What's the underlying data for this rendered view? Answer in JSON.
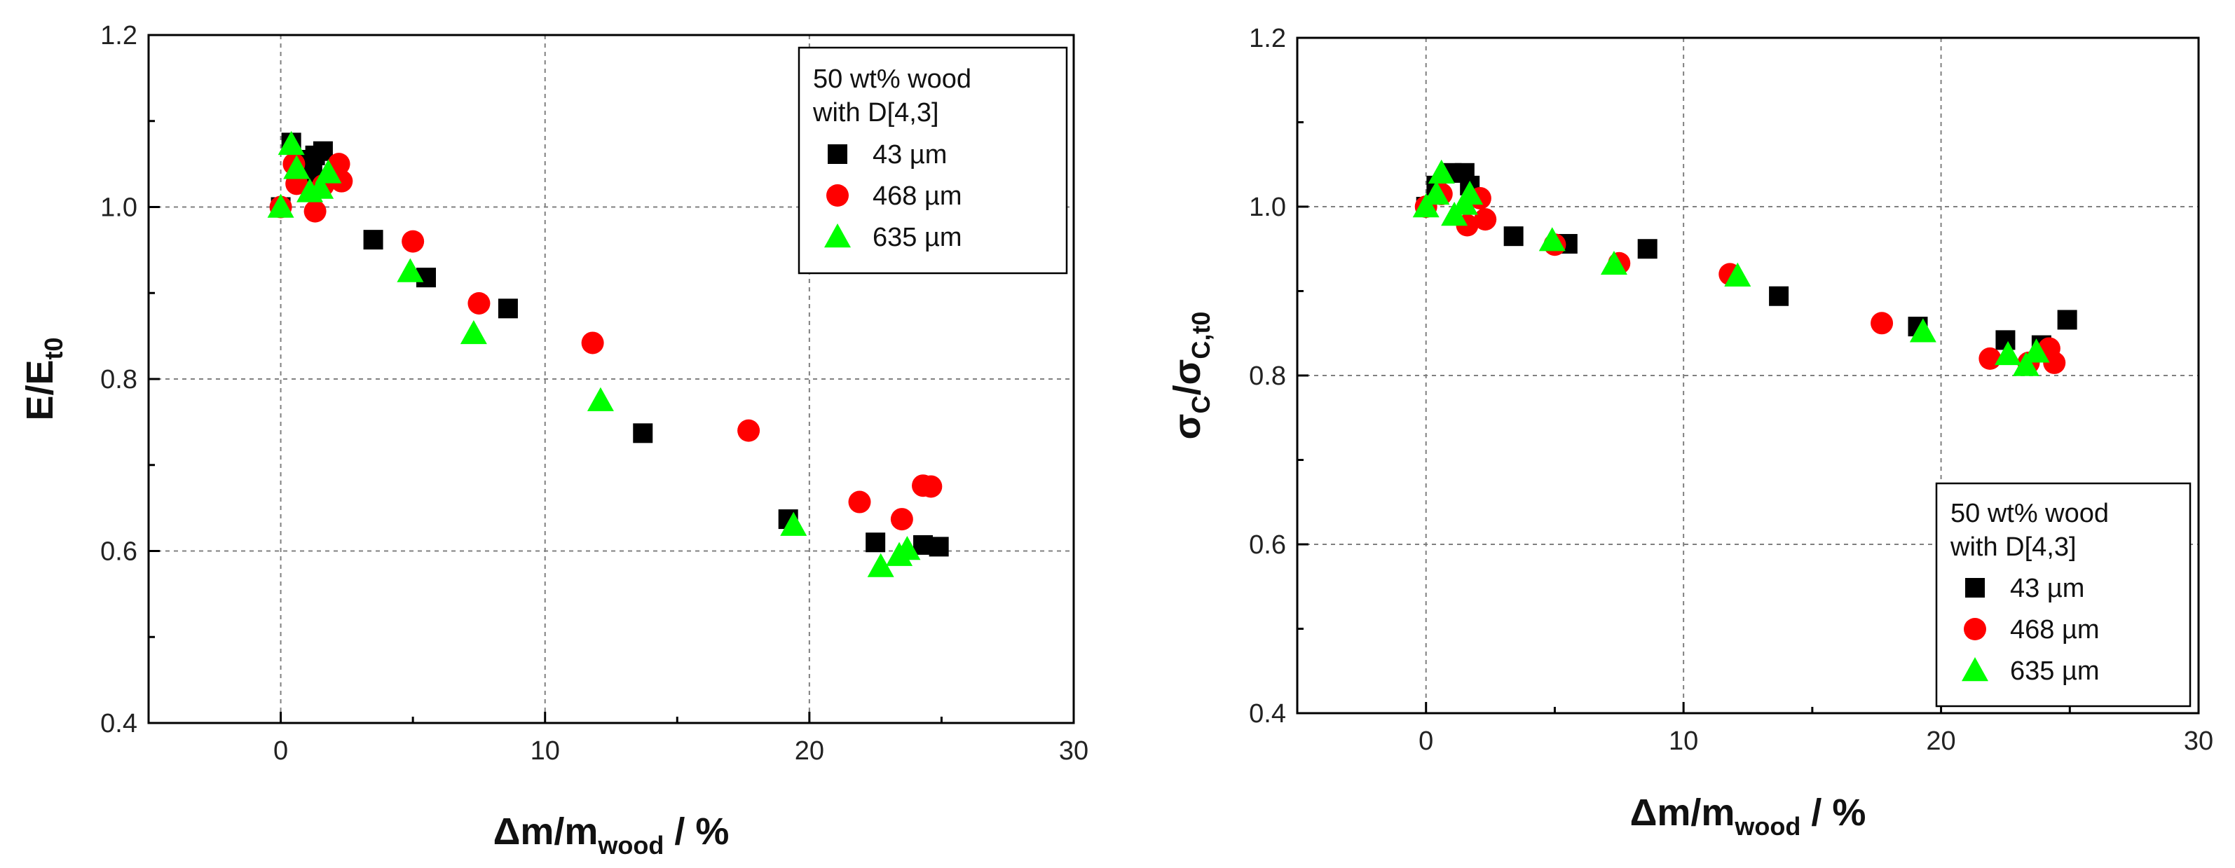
{
  "chart_data": [
    {
      "type": "scatter",
      "xlabel_main": "Δm/m",
      "xlabel_sub": "wood",
      "xlabel_tail": " / %",
      "ylabel_main": "E/E",
      "ylabel_sub": "t0",
      "xlim": [
        -5,
        30
      ],
      "ylim": [
        0.4,
        1.2
      ],
      "xticks": [
        0,
        10,
        20,
        30
      ],
      "yticks": [
        0.4,
        0.6,
        0.8,
        1.0,
        1.2
      ],
      "xtick_labels": [
        "0",
        "10",
        "20",
        "30"
      ],
      "ytick_labels": [
        "0.4",
        "0.6",
        "0.8",
        "1.0",
        "1.2"
      ],
      "legend_title": [
        "50 wt% wood",
        "with D[4,3]"
      ],
      "legend_position": "top-right",
      "series": [
        {
          "name": "43 µm",
          "marker": "square",
          "color": "#000000",
          "points": [
            [
              0,
              1.0
            ],
            [
              0.4,
              1.075
            ],
            [
              1.0,
              1.055
            ],
            [
              1.3,
              1.06
            ],
            [
              1.6,
              1.065
            ],
            [
              1.2,
              1.04
            ],
            [
              3.5,
              0.962
            ],
            [
              5.5,
              0.918
            ],
            [
              8.6,
              0.882
            ],
            [
              13.7,
              0.737
            ],
            [
              19.2,
              0.637
            ],
            [
              22.5,
              0.61
            ],
            [
              24.3,
              0.607
            ],
            [
              24.9,
              0.605
            ]
          ]
        },
        {
          "name": "468 µm",
          "marker": "circle",
          "color": "#ff0000",
          "points": [
            [
              0,
              1.0
            ],
            [
              0.5,
              1.05
            ],
            [
              0.6,
              1.027
            ],
            [
              1.3,
              0.995
            ],
            [
              1.6,
              1.025
            ],
            [
              2.2,
              1.05
            ],
            [
              2.3,
              1.03
            ],
            [
              5.0,
              0.96
            ],
            [
              7.5,
              0.888
            ],
            [
              11.8,
              0.842
            ],
            [
              17.7,
              0.74
            ],
            [
              21.9,
              0.657
            ],
            [
              23.5,
              0.637
            ],
            [
              24.3,
              0.676
            ],
            [
              24.6,
              0.675
            ]
          ]
        },
        {
          "name": "635 µm",
          "marker": "triangle",
          "color": "#00ff00",
          "points": [
            [
              0,
              1.0
            ],
            [
              0.4,
              1.073
            ],
            [
              0.6,
              1.045
            ],
            [
              1.1,
              1.018
            ],
            [
              1.5,
              1.022
            ],
            [
              1.8,
              1.04
            ],
            [
              4.9,
              0.925
            ],
            [
              7.3,
              0.853
            ],
            [
              12.1,
              0.775
            ],
            [
              19.4,
              0.63
            ],
            [
              22.7,
              0.582
            ],
            [
              23.4,
              0.595
            ],
            [
              23.7,
              0.602
            ]
          ]
        }
      ]
    },
    {
      "type": "scatter",
      "xlabel_main": "Δm/m",
      "xlabel_sub": "wood",
      "xlabel_tail": " / %",
      "ylabel_main": "σ",
      "ylabel_sub1": "C",
      "ylabel_mid": "/σ",
      "ylabel_sub2": "C,t0",
      "xlim": [
        -5,
        30
      ],
      "ylim": [
        0.4,
        1.2
      ],
      "xticks": [
        0,
        10,
        20,
        30
      ],
      "yticks": [
        0.4,
        0.6,
        0.8,
        1.0,
        1.2
      ],
      "xtick_labels": [
        "0",
        "10",
        "20",
        "30"
      ],
      "ytick_labels": [
        "0.4",
        "0.6",
        "0.8",
        "1.0",
        "1.2"
      ],
      "legend_title": [
        "50 wt% wood",
        "with D[4,3]"
      ],
      "legend_position": "bottom-right",
      "series": [
        {
          "name": "43 µm",
          "marker": "square",
          "color": "#000000",
          "points": [
            [
              0,
              1.0
            ],
            [
              0.4,
              1.025
            ],
            [
              1.0,
              1.04
            ],
            [
              1.5,
              1.04
            ],
            [
              1.7,
              1.025
            ],
            [
              3.4,
              0.965
            ],
            [
              5.5,
              0.956
            ],
            [
              8.6,
              0.95
            ],
            [
              13.7,
              0.894
            ],
            [
              19.1,
              0.858
            ],
            [
              22.5,
              0.842
            ],
            [
              23.9,
              0.836
            ],
            [
              24.9,
              0.866
            ]
          ]
        },
        {
          "name": "468 µm",
          "marker": "circle",
          "color": "#ff0000",
          "points": [
            [
              0,
              1.0
            ],
            [
              0.6,
              1.015
            ],
            [
              1.6,
              0.978
            ],
            [
              2.1,
              1.01
            ],
            [
              2.3,
              0.985
            ],
            [
              5.0,
              0.955
            ],
            [
              7.5,
              0.933
            ],
            [
              11.8,
              0.92
            ],
            [
              17.7,
              0.862
            ],
            [
              21.9,
              0.82
            ],
            [
              23.4,
              0.815
            ],
            [
              24.2,
              0.832
            ],
            [
              24.4,
              0.815
            ]
          ]
        },
        {
          "name": "635 µm",
          "marker": "triangle",
          "color": "#00ff00",
          "points": [
            [
              0,
              1.0
            ],
            [
              0.4,
              1.015
            ],
            [
              0.6,
              1.04
            ],
            [
              1.1,
              0.99
            ],
            [
              1.5,
              1.003
            ],
            [
              1.7,
              1.015
            ],
            [
              4.9,
              0.96
            ],
            [
              7.3,
              0.932
            ],
            [
              12.1,
              0.918
            ],
            [
              19.3,
              0.852
            ],
            [
              22.6,
              0.825
            ],
            [
              23.3,
              0.812
            ],
            [
              23.7,
              0.828
            ]
          ]
        }
      ]
    }
  ]
}
